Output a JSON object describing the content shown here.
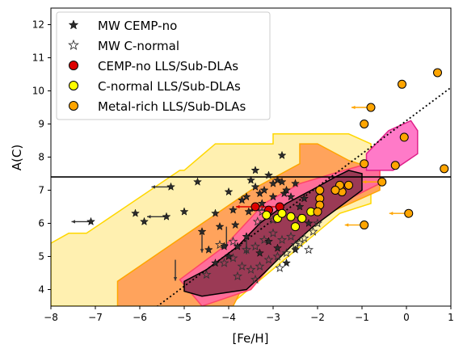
{
  "chart_data": {
    "type": "scatter",
    "title": "",
    "xlabel": "[Fe/H]",
    "ylabel": "A(C)",
    "xlim": [
      -8,
      1
    ],
    "ylim": [
      3.5,
      12.5
    ],
    "xticks": [
      -8,
      -7,
      -6,
      -5,
      -4,
      -3,
      -2,
      -1,
      0,
      1
    ],
    "yticks": [
      4,
      5,
      6,
      7,
      8,
      9,
      10,
      11,
      12
    ],
    "grid": false,
    "legend_position": "top-left",
    "colors": {
      "cemp_no": "#dd0000",
      "c_normal": "#ffff00",
      "metal_rich": "#ffa500",
      "zone_yellow": "#fff0b0",
      "zone_orange": "#ffa35c",
      "zone_pink": "#ff6e9a",
      "zone_magenta": "#ff7ac8",
      "zone_dark": "#9b3a55"
    },
    "legend": [
      {
        "label": "MW CEMP-no",
        "marker": "star-filled"
      },
      {
        "label": "MW C-normal",
        "marker": "star-open"
      },
      {
        "label": "CEMP-no LLS/Sub-DLAs",
        "marker": "circle-red"
      },
      {
        "label": "C-normal LLS/Sub-DLAs",
        "marker": "circle-yellow"
      },
      {
        "label": "Metal-rich LLS/Sub-DLAs",
        "marker": "circle-orange"
      }
    ],
    "reference_lines": {
      "horizontal_y": 7.4,
      "dotted_slope": 1,
      "dotted_intercept": 9.1
    },
    "zones": [
      {
        "name": "yellow-region",
        "color": "#fff0b0",
        "edge": "#ffd700",
        "points": [
          [
            -8,
            5.4
          ],
          [
            -7.6,
            5.7
          ],
          [
            -7.2,
            5.7
          ],
          [
            -5.1,
            7.6
          ],
          [
            -5,
            7.6
          ],
          [
            -4.3,
            8.4
          ],
          [
            -3,
            8.4
          ],
          [
            -3,
            8.7
          ],
          [
            -1.3,
            8.7
          ],
          [
            -0.8,
            8.4
          ],
          [
            -0.8,
            6.6
          ],
          [
            -1.5,
            6.3
          ],
          [
            -4,
            3.5
          ],
          [
            -8,
            3.5
          ]
        ]
      },
      {
        "name": "orange-region",
        "color": "#ffa35c",
        "edge": "#ffa500",
        "points": [
          [
            -6.5,
            4.25
          ],
          [
            -3.5,
            7.0
          ],
          [
            -2.4,
            7.8
          ],
          [
            -2.4,
            8.4
          ],
          [
            -2.0,
            8.4
          ],
          [
            -1.3,
            7.9
          ],
          [
            -0.6,
            7.6
          ],
          [
            -0.6,
            7.0
          ],
          [
            -1.6,
            6.4
          ],
          [
            -2.6,
            5.5
          ],
          [
            -3.6,
            4.3
          ],
          [
            -3.9,
            3.5
          ],
          [
            -6.5,
            3.5
          ]
        ]
      },
      {
        "name": "pink-region",
        "color": "#ff6e9a",
        "edge": "#ff4466",
        "points": [
          [
            -5.1,
            4.3
          ],
          [
            -4.7,
            4.7
          ],
          [
            -4.1,
            5.3
          ],
          [
            -3.2,
            6.6
          ],
          [
            -2.4,
            7.2
          ],
          [
            -1.4,
            7.6
          ],
          [
            -0.6,
            7.9
          ],
          [
            -0.6,
            7.2
          ],
          [
            -1.2,
            6.8
          ],
          [
            -2.1,
            6.0
          ],
          [
            -3.0,
            4.8
          ],
          [
            -3.5,
            4.0
          ],
          [
            -4.6,
            3.5
          ]
        ]
      },
      {
        "name": "magenta-region",
        "color": "#ff7ac8",
        "edge": "#e0208a",
        "points": [
          [
            -0.9,
            8.1
          ],
          [
            -0.4,
            8.8
          ],
          [
            0.1,
            9.1
          ],
          [
            0.25,
            8.8
          ],
          [
            0.25,
            8.1
          ],
          [
            -0.3,
            7.6
          ],
          [
            -0.9,
            7.6
          ]
        ]
      },
      {
        "name": "dark-region",
        "color": "#9b3a55",
        "edge": "#000000",
        "points": [
          [
            -5.0,
            3.95
          ],
          [
            -5.0,
            4.25
          ],
          [
            -4.5,
            4.6
          ],
          [
            -3.8,
            5.3
          ],
          [
            -3.3,
            6.0
          ],
          [
            -2.7,
            6.6
          ],
          [
            -2.0,
            7.1
          ],
          [
            -1.6,
            7.4
          ],
          [
            -1.3,
            7.6
          ],
          [
            -1.0,
            7.5
          ],
          [
            -1.0,
            7.0
          ],
          [
            -1.3,
            6.7
          ],
          [
            -1.7,
            6.3
          ],
          [
            -2.1,
            5.9
          ],
          [
            -2.6,
            5.3
          ],
          [
            -3.2,
            4.5
          ],
          [
            -3.6,
            4.0
          ],
          [
            -4.6,
            3.8
          ]
        ]
      }
    ],
    "series": [
      {
        "name": "MW CEMP-no",
        "points": [
          [
            -7.1,
            6.05
          ],
          [
            -6.1,
            6.3
          ],
          [
            -5.9,
            6.05
          ],
          [
            -5.3,
            7.1
          ],
          [
            -5.0,
            6.35
          ],
          [
            -5.4,
            6.2
          ],
          [
            -4.7,
            7.25
          ],
          [
            -4.6,
            5.75
          ],
          [
            -4.3,
            6.3
          ],
          [
            -4.2,
            5.9
          ],
          [
            -4.0,
            6.95
          ],
          [
            -3.9,
            6.4
          ],
          [
            -3.85,
            5.95
          ],
          [
            -3.7,
            6.7
          ],
          [
            -3.6,
            6.8
          ],
          [
            -3.5,
            7.3
          ],
          [
            -3.4,
            7.1
          ],
          [
            -3.3,
            6.9
          ],
          [
            -3.25,
            6.6
          ],
          [
            -3.2,
            7.0
          ],
          [
            -3.1,
            7.45
          ],
          [
            -3.0,
            7.2
          ],
          [
            -2.9,
            7.3
          ],
          [
            -2.8,
            8.05
          ],
          [
            -2.75,
            6.9
          ],
          [
            -2.7,
            7.0
          ],
          [
            -2.6,
            6.8
          ],
          [
            -2.5,
            7.2
          ],
          [
            -2.4,
            6.5
          ],
          [
            -2.3,
            6.75
          ],
          [
            -4.1,
            5.3
          ],
          [
            -3.8,
            5.3
          ],
          [
            -3.6,
            5.6
          ],
          [
            -3.3,
            5.1
          ],
          [
            -3.1,
            5.45
          ],
          [
            -2.9,
            5.25
          ],
          [
            -2.7,
            4.8
          ],
          [
            -2.5,
            5.2
          ],
          [
            -2.2,
            6.0
          ],
          [
            -4.3,
            4.8
          ],
          [
            -4.0,
            5.0
          ],
          [
            -3.4,
            7.6
          ],
          [
            -3.0,
            6.8
          ],
          [
            -2.8,
            7.25
          ],
          [
            -3.55,
            6.35
          ],
          [
            -4.45,
            5.2
          ]
        ]
      },
      {
        "name": "MW C-normal",
        "points": [
          [
            -4.1,
            4.8
          ],
          [
            -3.9,
            4.95
          ],
          [
            -3.7,
            4.7
          ],
          [
            -3.5,
            4.6
          ],
          [
            -3.3,
            4.7
          ],
          [
            -3.1,
            4.9
          ],
          [
            -2.9,
            5.0
          ],
          [
            -2.7,
            5.1
          ],
          [
            -2.5,
            5.35
          ],
          [
            -2.3,
            5.55
          ],
          [
            -2.1,
            5.75
          ],
          [
            -3.9,
            5.45
          ],
          [
            -3.6,
            5.2
          ],
          [
            -3.4,
            5.3
          ],
          [
            -3.2,
            5.5
          ],
          [
            -3.0,
            5.7
          ],
          [
            -2.8,
            5.5
          ],
          [
            -2.6,
            5.6
          ],
          [
            -2.4,
            5.4
          ],
          [
            -3.8,
            4.4
          ],
          [
            -3.4,
            4.3
          ],
          [
            -2.85,
            4.65
          ],
          [
            -2.2,
            5.2
          ],
          [
            -3.0,
            6.1
          ],
          [
            -3.35,
            6.05
          ],
          [
            -2.0,
            6.0
          ],
          [
            -2.4,
            6.15
          ],
          [
            -4.2,
            5.35
          ],
          [
            -4.5,
            4.45
          ],
          [
            -3.25,
            6.35
          ]
        ]
      },
      {
        "name": "CEMP-no LLS/Sub-DLAs",
        "points": [
          [
            -3.4,
            6.5
          ],
          [
            -3.1,
            6.4
          ],
          [
            -2.85,
            6.5
          ]
        ]
      },
      {
        "name": "C-normal LLS/Sub-DLAs",
        "points": [
          [
            -2.9,
            6.15
          ],
          [
            -2.6,
            6.2
          ],
          [
            -2.35,
            6.15
          ],
          [
            -2.15,
            6.35
          ],
          [
            -2.5,
            5.9
          ],
          [
            -2.8,
            6.3
          ],
          [
            -3.15,
            6.25
          ]
        ]
      },
      {
        "name": "Metal-rich LLS/Sub-DLAs",
        "points": [
          [
            -0.1,
            10.2
          ],
          [
            0.7,
            10.55
          ],
          [
            -0.8,
            9.5
          ],
          [
            -0.95,
            9.0
          ],
          [
            -0.05,
            8.6
          ],
          [
            -0.25,
            7.75
          ],
          [
            -0.95,
            7.8
          ],
          [
            -1.3,
            7.15
          ],
          [
            -1.45,
            6.95
          ],
          [
            -1.5,
            7.15
          ],
          [
            -1.6,
            7.0
          ],
          [
            -1.95,
            6.75
          ],
          [
            -1.95,
            7.0
          ],
          [
            -1.95,
            6.55
          ],
          [
            -2.0,
            6.35
          ],
          [
            -0.55,
            7.25
          ],
          [
            0.85,
            7.65
          ],
          [
            0.05,
            6.3
          ],
          [
            -0.95,
            5.95
          ]
        ]
      }
    ],
    "upper_limits": [
      [
        -7.1,
        6.05
      ],
      [
        -5.3,
        7.1
      ],
      [
        -5.4,
        6.2
      ],
      [
        -3.4,
        6.5
      ],
      [
        -3.1,
        6.4
      ],
      [
        -2.85,
        6.5
      ],
      [
        -0.8,
        9.5
      ],
      [
        -0.55,
        7.25
      ],
      [
        0.05,
        6.3
      ],
      [
        -0.95,
        5.95
      ]
    ],
    "down_arrows": [
      [
        -4.6,
        5.75
      ],
      [
        -5.2,
        4.9
      ],
      [
        -4.05,
        5.9
      ],
      [
        -3.6,
        5.7
      ]
    ]
  }
}
